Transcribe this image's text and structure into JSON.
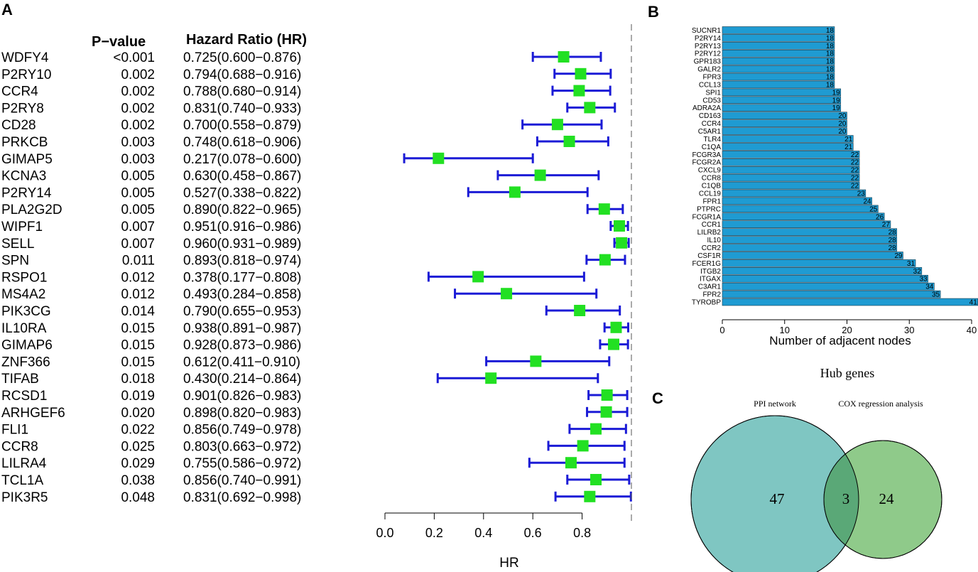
{
  "panels": {
    "a": "A",
    "b": "B",
    "c": "C"
  },
  "chart_data": [
    {
      "type": "forest",
      "xlabel": "HR",
      "xlim": [
        0,
        1
      ],
      "reference_line": 1.0,
      "x_ticks": [
        "0.0",
        "0.2",
        "0.4",
        "0.6",
        "0.8"
      ],
      "columns": {
        "pvalue": "P−value",
        "hr": "Hazard Ratio (HR)"
      },
      "colors": {
        "point": "#22e022",
        "ci": "#1b1bd6"
      },
      "rows": [
        {
          "gene": "WDFY4",
          "p": "<0.001",
          "hr_text": "0.725(0.600−0.876)",
          "hr": 0.725,
          "lo": 0.6,
          "hi": 0.876
        },
        {
          "gene": "P2RY10",
          "p": "0.002",
          "hr_text": "0.794(0.688−0.916)",
          "hr": 0.794,
          "lo": 0.688,
          "hi": 0.916
        },
        {
          "gene": "CCR4",
          "p": "0.002",
          "hr_text": "0.788(0.680−0.914)",
          "hr": 0.788,
          "lo": 0.68,
          "hi": 0.914
        },
        {
          "gene": "P2RY8",
          "p": "0.002",
          "hr_text": "0.831(0.740−0.933)",
          "hr": 0.831,
          "lo": 0.74,
          "hi": 0.933
        },
        {
          "gene": "CD28",
          "p": "0.002",
          "hr_text": "0.700(0.558−0.879)",
          "hr": 0.7,
          "lo": 0.558,
          "hi": 0.879
        },
        {
          "gene": "PRKCB",
          "p": "0.003",
          "hr_text": "0.748(0.618−0.906)",
          "hr": 0.748,
          "lo": 0.618,
          "hi": 0.906
        },
        {
          "gene": "GIMAP5",
          "p": "0.003",
          "hr_text": "0.217(0.078−0.600)",
          "hr": 0.217,
          "lo": 0.078,
          "hi": 0.6
        },
        {
          "gene": "KCNA3",
          "p": "0.005",
          "hr_text": "0.630(0.458−0.867)",
          "hr": 0.63,
          "lo": 0.458,
          "hi": 0.867
        },
        {
          "gene": "P2RY14",
          "p": "0.005",
          "hr_text": "0.527(0.338−0.822)",
          "hr": 0.527,
          "lo": 0.338,
          "hi": 0.822
        },
        {
          "gene": "PLA2G2D",
          "p": "0.005",
          "hr_text": "0.890(0.822−0.965)",
          "hr": 0.89,
          "lo": 0.822,
          "hi": 0.965
        },
        {
          "gene": "WIPF1",
          "p": "0.007",
          "hr_text": "0.951(0.916−0.986)",
          "hr": 0.951,
          "lo": 0.916,
          "hi": 0.986
        },
        {
          "gene": "SELL",
          "p": "0.007",
          "hr_text": "0.960(0.931−0.989)",
          "hr": 0.96,
          "lo": 0.931,
          "hi": 0.989
        },
        {
          "gene": "SPN",
          "p": "0.011",
          "hr_text": "0.893(0.818−0.974)",
          "hr": 0.893,
          "lo": 0.818,
          "hi": 0.974
        },
        {
          "gene": "RSPO1",
          "p": "0.012",
          "hr_text": "0.378(0.177−0.808)",
          "hr": 0.378,
          "lo": 0.177,
          "hi": 0.808
        },
        {
          "gene": "MS4A2",
          "p": "0.012",
          "hr_text": "0.493(0.284−0.858)",
          "hr": 0.493,
          "lo": 0.284,
          "hi": 0.858
        },
        {
          "gene": "PIK3CG",
          "p": "0.014",
          "hr_text": "0.790(0.655−0.953)",
          "hr": 0.79,
          "lo": 0.655,
          "hi": 0.953
        },
        {
          "gene": "IL10RA",
          "p": "0.015",
          "hr_text": "0.938(0.891−0.987)",
          "hr": 0.938,
          "lo": 0.891,
          "hi": 0.987
        },
        {
          "gene": "GIMAP6",
          "p": "0.015",
          "hr_text": "0.928(0.873−0.986)",
          "hr": 0.928,
          "lo": 0.873,
          "hi": 0.986
        },
        {
          "gene": "ZNF366",
          "p": "0.015",
          "hr_text": "0.612(0.411−0.910)",
          "hr": 0.612,
          "lo": 0.411,
          "hi": 0.91
        },
        {
          "gene": "TIFAB",
          "p": "0.018",
          "hr_text": "0.430(0.214−0.864)",
          "hr": 0.43,
          "lo": 0.214,
          "hi": 0.864
        },
        {
          "gene": "RCSD1",
          "p": "0.019",
          "hr_text": "0.901(0.826−0.983)",
          "hr": 0.901,
          "lo": 0.826,
          "hi": 0.983
        },
        {
          "gene": "ARHGEF6",
          "p": "0.020",
          "hr_text": "0.898(0.820−0.983)",
          "hr": 0.898,
          "lo": 0.82,
          "hi": 0.983
        },
        {
          "gene": "FLI1",
          "p": "0.022",
          "hr_text": "0.856(0.749−0.978)",
          "hr": 0.856,
          "lo": 0.749,
          "hi": 0.978
        },
        {
          "gene": "CCR8",
          "p": "0.025",
          "hr_text": "0.803(0.663−0.972)",
          "hr": 0.803,
          "lo": 0.663,
          "hi": 0.972
        },
        {
          "gene": "LILRA4",
          "p": "0.029",
          "hr_text": "0.755(0.586−0.972)",
          "hr": 0.755,
          "lo": 0.586,
          "hi": 0.972
        },
        {
          "gene": "TCL1A",
          "p": "0.038",
          "hr_text": "0.856(0.740−0.991)",
          "hr": 0.856,
          "lo": 0.74,
          "hi": 0.991
        },
        {
          "gene": "PIK3R5",
          "p": "0.048",
          "hr_text": "0.831(0.692−0.998)",
          "hr": 0.831,
          "lo": 0.692,
          "hi": 0.998
        }
      ]
    },
    {
      "type": "bar",
      "orientation": "horizontal",
      "xlabel": "Number of adjacent nodes",
      "xlim": [
        0,
        41
      ],
      "x_ticks": [
        0,
        10,
        20,
        30,
        40
      ],
      "color": "#1f9bd2",
      "categories": [
        "SUCNR1",
        "P2RY14",
        "P2RY13",
        "P2RY12",
        "GPR183",
        "GALR2",
        "FPR3",
        "CCL13",
        "SPI1",
        "CD53",
        "ADRA2A",
        "CD163",
        "CCR4",
        "C5AR1",
        "TLR4",
        "C1QA",
        "FCGR3A",
        "FCGR2A",
        "CXCL9",
        "CCR8",
        "C1QB",
        "CCL19",
        "FPR1",
        "PTPRC",
        "FCGR1A",
        "CCR1",
        "LILRB2",
        "IL10",
        "CCR2",
        "CSF1R",
        "FCER1G",
        "ITGB2",
        "ITGAX",
        "C3AR1",
        "FPR2",
        "TYROBP"
      ],
      "values": [
        18,
        18,
        18,
        18,
        18,
        18,
        18,
        18,
        19,
        19,
        19,
        20,
        20,
        20,
        21,
        21,
        22,
        22,
        22,
        22,
        22,
        23,
        24,
        25,
        26,
        27,
        28,
        28,
        28,
        29,
        31,
        32,
        33,
        34,
        35,
        41
      ]
    },
    {
      "type": "venn",
      "title": "Hub genes",
      "sets": [
        {
          "name": "PPI network",
          "only": 47,
          "color": "#7fc6c2"
        },
        {
          "name": "COX regression analysis",
          "only": 24,
          "color": "#8fca8a"
        }
      ],
      "intersection": 3,
      "intersection_color": "#5aa877"
    }
  ]
}
